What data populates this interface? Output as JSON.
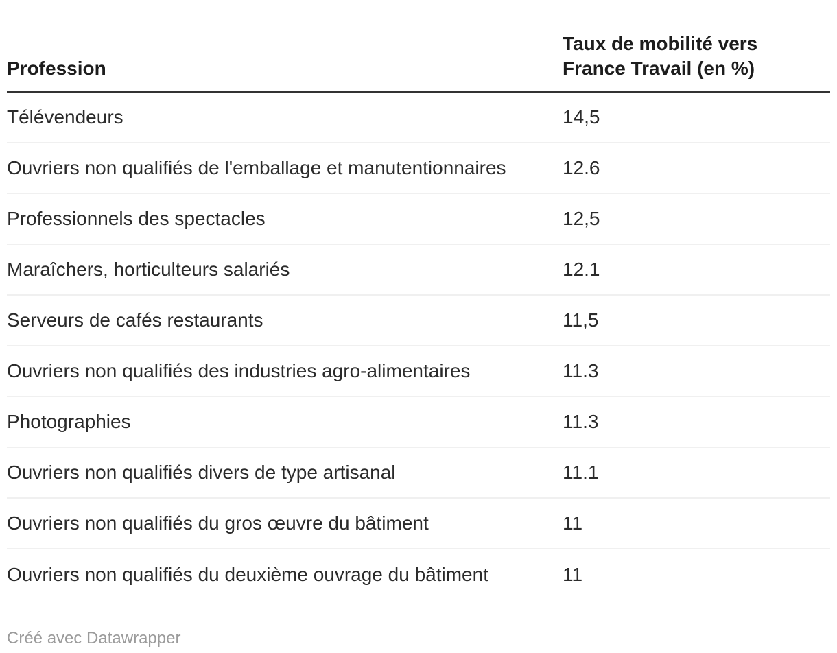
{
  "table": {
    "header": {
      "profession": "Profession",
      "value": "Taux de mobilité vers\nFrance Travail (en %)"
    },
    "rows": [
      {
        "profession": "Télévendeurs",
        "value": "14,5"
      },
      {
        "profession": "Ouvriers non qualifiés de l'emballage et manutentionnaires",
        "value": "12.6"
      },
      {
        "profession": "Professionnels des spectacles",
        "value": "12,5"
      },
      {
        "profession": "Maraîchers, horticulteurs salariés",
        "value": "12.1"
      },
      {
        "profession": "Serveurs de cafés restaurants",
        "value": "11,5"
      },
      {
        "profession": "Ouvriers non qualifiés des industries agro-alimentaires",
        "value": "11.3"
      },
      {
        "profession": "Photographies",
        "value": "11.3"
      },
      {
        "profession": "Ouvriers non qualifiés divers de type artisanal",
        "value": "11.1"
      },
      {
        "profession": "Ouvriers non qualifiés du gros œuvre du bâtiment",
        "value": "11"
      },
      {
        "profession": "Ouvriers non qualifiés du deuxième ouvrage du bâtiment",
        "value": "11"
      }
    ]
  },
  "footer": {
    "credit": "Créé avec Datawrapper"
  },
  "colors": {
    "text": "#1d1d1d",
    "row_text": "#2b2b2b",
    "header_rule": "#333333",
    "row_divider": "#f0f0f0",
    "credit_text": "#9b9b9b",
    "background": "#ffffff"
  },
  "chart_data": {
    "type": "table",
    "title": "",
    "columns": [
      "Profession",
      "Taux de mobilité vers France Travail (en %)"
    ],
    "rows": [
      [
        "Télévendeurs",
        "14,5"
      ],
      [
        "Ouvriers non qualifiés de l'emballage et manutentionnaires",
        "12.6"
      ],
      [
        "Professionnels des spectacles",
        "12,5"
      ],
      [
        "Maraîchers, horticulteurs salariés",
        "12.1"
      ],
      [
        "Serveurs de cafés restaurants",
        "11,5"
      ],
      [
        "Ouvriers non qualifiés des industries agro-alimentaires",
        "11.3"
      ],
      [
        "Photographies",
        "11.3"
      ],
      [
        "Ouvriers non qualifiés divers de type artisanal",
        "11.1"
      ],
      [
        "Ouvriers non qualifiés du gros œuvre du bâtiment",
        "11"
      ],
      [
        "Ouvriers non qualifiés du deuxième ouvrage du bâtiment",
        "11"
      ]
    ],
    "values_numeric": [
      14.5,
      12.6,
      12.5,
      12.1,
      11.5,
      11.3,
      11.3,
      11.1,
      11,
      11
    ],
    "notes": "Datawrapper table, no gridlines besides header rule and light row dividers, credit line bottom-left"
  }
}
